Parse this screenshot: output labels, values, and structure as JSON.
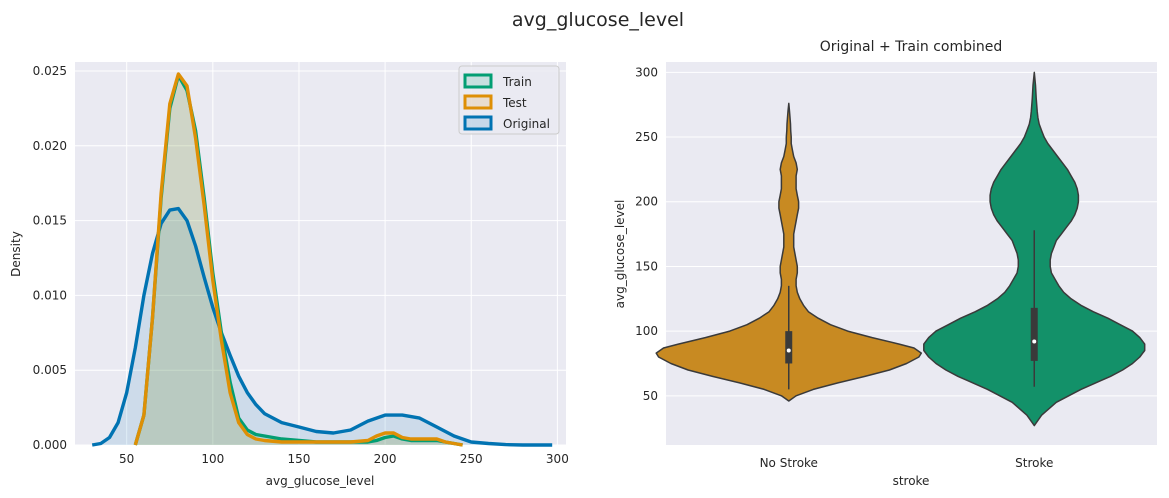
{
  "figure": {
    "suptitle": "avg_glucose_level"
  },
  "chart_data": [
    {
      "type": "area",
      "title": "",
      "xlabel": "avg_glucose_level",
      "ylabel": "Density",
      "xlim": [
        20,
        305
      ],
      "ylim": [
        0,
        0.0256
      ],
      "xticks": [
        50,
        100,
        150,
        200,
        250,
        300
      ],
      "yticks": [
        0.0,
        0.005,
        0.01,
        0.015,
        0.02,
        0.025
      ],
      "ytick_labels": [
        "0.000",
        "0.005",
        "0.010",
        "0.015",
        "0.020",
        "0.025"
      ],
      "grid": true,
      "legend_position": "top-right",
      "series": [
        {
          "name": "Train",
          "color": "#029e73",
          "x": [
            55,
            60,
            65,
            70,
            75,
            80,
            85,
            90,
            95,
            100,
            105,
            110,
            115,
            120,
            125,
            130,
            140,
            150,
            160,
            170,
            180,
            190,
            195,
            200,
            205,
            210,
            215,
            220,
            225,
            230,
            235,
            240,
            245
          ],
          "y": [
            0.0,
            0.002,
            0.0085,
            0.0165,
            0.0225,
            0.0247,
            0.0237,
            0.021,
            0.0165,
            0.0115,
            0.0075,
            0.0042,
            0.0018,
            0.001,
            0.0007,
            0.0006,
            0.0004,
            0.0003,
            0.0002,
            0.0002,
            0.0002,
            0.0002,
            0.0003,
            0.0005,
            0.0006,
            0.0004,
            0.0003,
            0.0003,
            0.0003,
            0.0003,
            0.0002,
            0.0001,
            0.0
          ]
        },
        {
          "name": "Test",
          "color": "#de8f05",
          "x": [
            55,
            60,
            65,
            70,
            75,
            80,
            85,
            90,
            95,
            100,
            105,
            110,
            115,
            120,
            125,
            130,
            140,
            150,
            160,
            170,
            180,
            190,
            195,
            200,
            205,
            210,
            215,
            220,
            225,
            230,
            235,
            240,
            245
          ],
          "y": [
            0.0,
            0.002,
            0.0085,
            0.0168,
            0.0228,
            0.0248,
            0.024,
            0.0205,
            0.016,
            0.011,
            0.007,
            0.0035,
            0.0015,
            0.0007,
            0.0004,
            0.0003,
            0.0002,
            0.0002,
            0.0002,
            0.0002,
            0.0002,
            0.0003,
            0.0006,
            0.0008,
            0.0008,
            0.0005,
            0.0004,
            0.0004,
            0.0004,
            0.0004,
            0.0002,
            0.0001,
            0.0
          ]
        },
        {
          "name": "Original",
          "color": "#0173b2",
          "x": [
            30,
            35,
            40,
            45,
            50,
            55,
            60,
            65,
            70,
            75,
            80,
            85,
            90,
            95,
            100,
            105,
            110,
            115,
            120,
            125,
            130,
            140,
            150,
            160,
            170,
            180,
            190,
            200,
            210,
            220,
            230,
            240,
            250,
            260,
            270,
            280,
            290,
            297
          ],
          "y": [
            0.0,
            0.0001,
            0.0005,
            0.0015,
            0.0035,
            0.0065,
            0.01,
            0.0128,
            0.0148,
            0.0157,
            0.0158,
            0.015,
            0.0133,
            0.0112,
            0.0092,
            0.0075,
            0.006,
            0.0046,
            0.0035,
            0.0027,
            0.0021,
            0.0015,
            0.0012,
            0.0009,
            0.0008,
            0.001,
            0.0016,
            0.002,
            0.002,
            0.0018,
            0.0012,
            0.0006,
            0.0002,
            0.0001,
            3e-05,
            0.0,
            0.0,
            0.0
          ]
        }
      ]
    },
    {
      "type": "violin",
      "title": "Original + Train combined",
      "xlabel": "stroke",
      "ylabel": "avg_glucose_level",
      "categories": [
        "No Stroke",
        "Stroke"
      ],
      "ylim": [
        12,
        308
      ],
      "yticks": [
        50,
        100,
        150,
        200,
        250,
        300
      ],
      "grid": true,
      "violins": [
        {
          "category": "No Stroke",
          "color": "#c88a22",
          "y": [
            46,
            50,
            55,
            60,
            65,
            70,
            75,
            80,
            83,
            87,
            90,
            95,
            100,
            105,
            110,
            115,
            120,
            125,
            130,
            135,
            140,
            145,
            150,
            155,
            160,
            165,
            170,
            175,
            180,
            185,
            190,
            195,
            200,
            205,
            210,
            215,
            220,
            225,
            230,
            235,
            240,
            245,
            250,
            255,
            260,
            265,
            270,
            276
          ],
          "halfwidth": [
            0.0,
            0.03,
            0.1,
            0.2,
            0.31,
            0.41,
            0.48,
            0.53,
            0.54,
            0.51,
            0.45,
            0.34,
            0.24,
            0.17,
            0.12,
            0.08,
            0.06,
            0.045,
            0.035,
            0.03,
            0.03,
            0.035,
            0.035,
            0.03,
            0.025,
            0.02,
            0.02,
            0.02,
            0.025,
            0.03,
            0.035,
            0.04,
            0.04,
            0.035,
            0.03,
            0.03,
            0.03,
            0.035,
            0.03,
            0.02,
            0.015,
            0.01,
            0.01,
            0.008,
            0.007,
            0.005,
            0.003,
            0.0
          ],
          "whisker": [
            55,
            135
          ],
          "q1": 75,
          "median": 85,
          "q3": 100
        },
        {
          "category": "Stroke",
          "color": "#139169",
          "y": [
            27,
            35,
            45,
            55,
            60,
            65,
            70,
            75,
            80,
            85,
            90,
            95,
            100,
            105,
            110,
            115,
            120,
            125,
            130,
            135,
            140,
            145,
            150,
            155,
            160,
            165,
            170,
            175,
            180,
            185,
            190,
            195,
            200,
            205,
            210,
            215,
            220,
            225,
            230,
            235,
            240,
            245,
            250,
            255,
            260,
            265,
            270,
            280,
            290,
            300
          ],
          "halfwidth": [
            0.0,
            0.03,
            0.09,
            0.19,
            0.25,
            0.31,
            0.36,
            0.4,
            0.43,
            0.45,
            0.45,
            0.43,
            0.4,
            0.35,
            0.3,
            0.24,
            0.19,
            0.15,
            0.12,
            0.1,
            0.085,
            0.07,
            0.065,
            0.065,
            0.07,
            0.08,
            0.09,
            0.11,
            0.13,
            0.15,
            0.165,
            0.175,
            0.18,
            0.18,
            0.175,
            0.165,
            0.15,
            0.135,
            0.115,
            0.095,
            0.075,
            0.055,
            0.04,
            0.03,
            0.02,
            0.015,
            0.012,
            0.008,
            0.005,
            0.0
          ],
          "whisker": [
            57,
            178
          ],
          "q1": 77,
          "median": 92,
          "q3": 118
        }
      ]
    }
  ]
}
